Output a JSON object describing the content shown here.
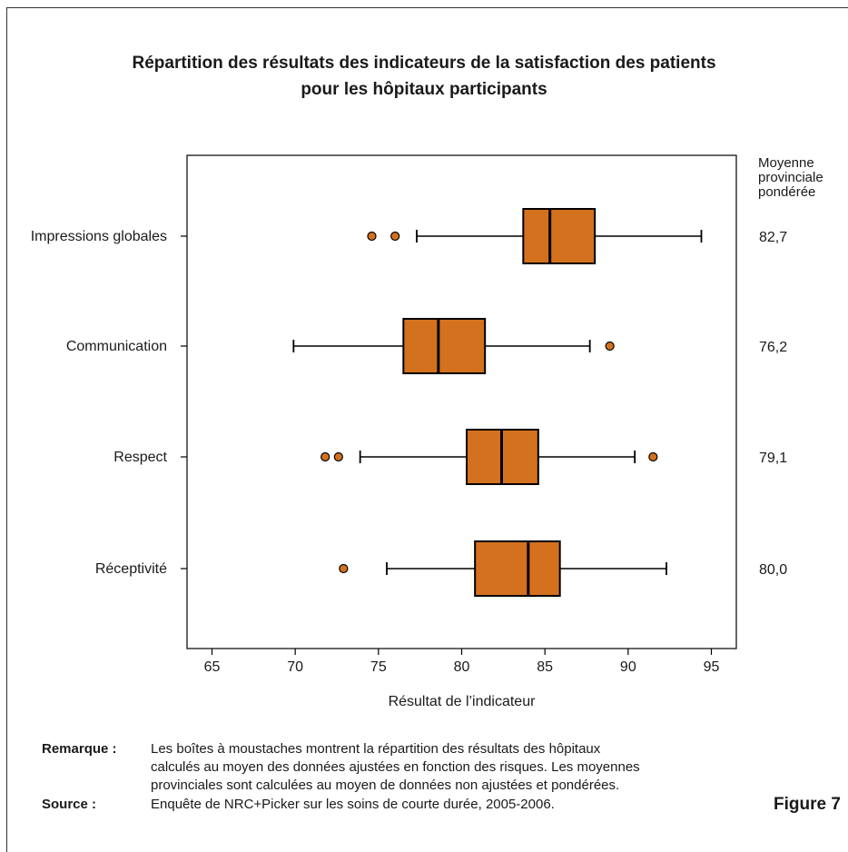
{
  "title_line1": "Répartition des résultats des indicateurs de la satisfaction des patients",
  "title_line2": "pour les hôpitaux participants",
  "right_header": [
    "Moyenne",
    "provinciale",
    "pondérée"
  ],
  "note_label": "Remarque :",
  "note_lines": [
    "Les boîtes à moustaches montrent la répartition des résultats des hôpitaux",
    "calculés au moyen des données ajustées en fonction des risques. Les moyennes",
    "provinciales sont calculées au moyen de données non ajustées et pondérées."
  ],
  "source_label": "Source :",
  "source_text": "Enquête de NRC+Picker sur les soins de courte durée, 2005-2006.",
  "figure_label": "Figure 7",
  "colors": {
    "box_fill": "#d4711e",
    "stroke": "#000000",
    "text": "#1a1a1a"
  },
  "chart_data": {
    "type": "boxplot",
    "title": "Répartition des résultats des indicateurs de la satisfaction des patients pour les hôpitaux participants",
    "xlabel": "Résultat de l’indicateur",
    "xlim": [
      63.5,
      96.5
    ],
    "xticks": [
      65,
      70,
      75,
      80,
      85,
      90,
      95
    ],
    "grid": false,
    "categories": [
      {
        "label": "Impressions globales",
        "whisker_low": 77.3,
        "q1": 83.7,
        "median": 85.3,
        "q3": 88.0,
        "whisker_high": 94.4,
        "outliers": [
          74.6,
          76.0
        ],
        "provincial_mean": "82,7"
      },
      {
        "label": "Communication",
        "whisker_low": 69.9,
        "q1": 76.5,
        "median": 78.6,
        "q3": 81.4,
        "whisker_high": 87.7,
        "outliers": [
          88.9
        ],
        "provincial_mean": "76,2"
      },
      {
        "label": "Respect",
        "whisker_low": 73.9,
        "q1": 80.3,
        "median": 82.4,
        "q3": 84.6,
        "whisker_high": 90.4,
        "outliers": [
          71.8,
          72.6,
          91.5
        ],
        "provincial_mean": "79,1"
      },
      {
        "label": "Réceptivité",
        "whisker_low": 75.5,
        "q1": 80.8,
        "median": 84.0,
        "q3": 85.9,
        "whisker_high": 92.3,
        "outliers": [
          72.9
        ],
        "provincial_mean": "80,0"
      }
    ]
  }
}
